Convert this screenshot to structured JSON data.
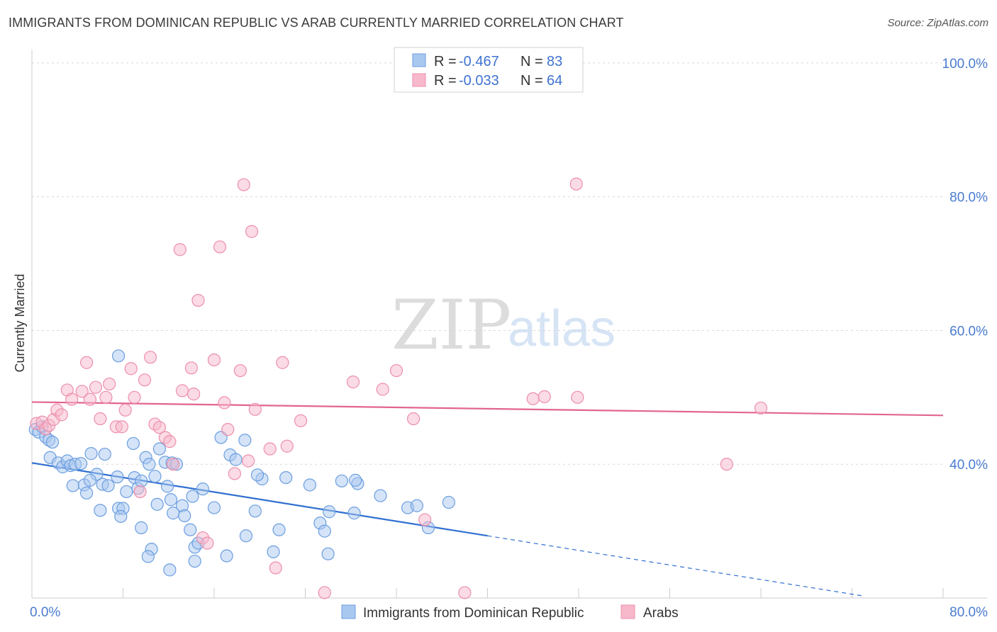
{
  "title": "IMMIGRANTS FROM DOMINICAN REPUBLIC VS ARAB CURRENTLY MARRIED CORRELATION CHART",
  "source": "Source: ZipAtlas.com",
  "watermark": {
    "zip": "ZIP",
    "atlas": "atlas"
  },
  "stats": [
    {
      "r_label": "R = ",
      "r_value": "-0.467",
      "n_label": "N = ",
      "n_value": "83",
      "color": "#a9c8f0"
    },
    {
      "r_label": "R = ",
      "r_value": "-0.033",
      "n_label": "N = ",
      "n_value": "64",
      "color": "#f7b8cb"
    }
  ],
  "chart_data": {
    "type": "scatter",
    "ylabel": "Currently Married",
    "xlim": [
      0,
      80
    ],
    "ylim": [
      20,
      102
    ],
    "x_tick_labels": [
      {
        "value": 0,
        "label": "0.0%"
      },
      {
        "value": 80,
        "label": "80.0%"
      }
    ],
    "y_tick_labels": [
      {
        "value": 100,
        "label": "100.0%"
      },
      {
        "value": 80,
        "label": "80.0%"
      },
      {
        "value": 60,
        "label": "60.0%"
      },
      {
        "value": 40,
        "label": "40.0%"
      }
    ],
    "grid": true,
    "legend_position": "bottom-center",
    "series": [
      {
        "name": "Immigrants from Dominican Republic",
        "color": "#6b9ee0",
        "fill": "#a9c8f0",
        "trend": {
          "x": [
            0,
            40
          ],
          "y": [
            40.2,
            29.3
          ],
          "dashed_to": [
            73,
            20.3
          ],
          "color": "#2f6fd1"
        },
        "points": [
          [
            0.3,
            45.2
          ],
          [
            0.6,
            44.8
          ],
          [
            0.9,
            45.6
          ],
          [
            1.2,
            44.1
          ],
          [
            1.5,
            43.6
          ],
          [
            1.8,
            43.3
          ],
          [
            1.6,
            41.0
          ],
          [
            2.3,
            40.2
          ],
          [
            2.7,
            39.6
          ],
          [
            3.1,
            40.5
          ],
          [
            3.4,
            39.8
          ],
          [
            3.8,
            40.0
          ],
          [
            4.3,
            40.1
          ],
          [
            5.2,
            41.6
          ],
          [
            5.7,
            38.5
          ],
          [
            6.4,
            41.5
          ],
          [
            3.6,
            36.8
          ],
          [
            4.6,
            36.9
          ],
          [
            4.8,
            35.7
          ],
          [
            6.2,
            37.0
          ],
          [
            6.7,
            36.8
          ],
          [
            7.5,
            38.1
          ],
          [
            7.6,
            33.4
          ],
          [
            8.0,
            33.4
          ],
          [
            7.8,
            32.2
          ],
          [
            9.0,
            38.0
          ],
          [
            9.3,
            36.4
          ],
          [
            9.6,
            37.5
          ],
          [
            8.9,
            43.1
          ],
          [
            10.0,
            41.0
          ],
          [
            10.3,
            40.0
          ],
          [
            10.8,
            38.2
          ],
          [
            11.7,
            40.3
          ],
          [
            11.2,
            42.3
          ],
          [
            12.3,
            40.2
          ],
          [
            12.7,
            40.0
          ],
          [
            11.0,
            34.0
          ],
          [
            12.2,
            34.7
          ],
          [
            12.4,
            32.7
          ],
          [
            13.2,
            33.8
          ],
          [
            13.4,
            32.3
          ],
          [
            14.1,
            35.2
          ],
          [
            15.0,
            36.3
          ],
          [
            16.0,
            33.5
          ],
          [
            16.6,
            44.0
          ],
          [
            17.4,
            41.4
          ],
          [
            17.9,
            40.7
          ],
          [
            18.7,
            43.6
          ],
          [
            19.6,
            33.0
          ],
          [
            20.2,
            37.8
          ],
          [
            21.7,
            30.2
          ],
          [
            22.3,
            38.0
          ],
          [
            24.4,
            36.9
          ],
          [
            25.3,
            31.2
          ],
          [
            25.7,
            30.0
          ],
          [
            26.1,
            32.9
          ],
          [
            27.2,
            37.5
          ],
          [
            28.3,
            32.7
          ],
          [
            28.6,
            37.1
          ],
          [
            28.4,
            37.6
          ],
          [
            30.6,
            35.3
          ],
          [
            33.0,
            33.5
          ],
          [
            33.8,
            33.8
          ],
          [
            34.8,
            30.5
          ],
          [
            36.6,
            34.3
          ],
          [
            7.6,
            56.2
          ],
          [
            9.6,
            30.5
          ],
          [
            10.5,
            27.3
          ],
          [
            10.2,
            26.2
          ],
          [
            12.1,
            24.2
          ],
          [
            14.3,
            27.6
          ],
          [
            14.6,
            28.2
          ],
          [
            14.3,
            25.5
          ],
          [
            17.1,
            26.3
          ],
          [
            18.8,
            29.3
          ],
          [
            21.2,
            26.9
          ],
          [
            26.0,
            26.6
          ],
          [
            11.9,
            36.7
          ],
          [
            8.3,
            35.9
          ],
          [
            13.9,
            30.2
          ],
          [
            19.8,
            38.4
          ],
          [
            5.1,
            37.6
          ],
          [
            6.0,
            33.1
          ]
        ]
      },
      {
        "name": "Arabs",
        "color": "#ec8fab",
        "fill": "#f7b8cb",
        "trend": {
          "x": [
            0,
            80
          ],
          "y": [
            49.3,
            47.3
          ],
          "color": "#e2658f"
        },
        "points": [
          [
            0.4,
            46.1
          ],
          [
            0.9,
            46.3
          ],
          [
            1.2,
            45.3
          ],
          [
            1.5,
            45.8
          ],
          [
            1.9,
            46.7
          ],
          [
            2.2,
            48.1
          ],
          [
            2.6,
            47.4
          ],
          [
            3.1,
            51.1
          ],
          [
            3.5,
            49.7
          ],
          [
            4.4,
            50.9
          ],
          [
            4.8,
            55.2
          ],
          [
            5.1,
            49.7
          ],
          [
            5.6,
            51.5
          ],
          [
            6.0,
            46.8
          ],
          [
            6.5,
            50.0
          ],
          [
            6.8,
            52.0
          ],
          [
            7.4,
            45.6
          ],
          [
            7.9,
            45.6
          ],
          [
            8.2,
            48.1
          ],
          [
            8.7,
            54.3
          ],
          [
            9.0,
            50.0
          ],
          [
            9.5,
            35.9
          ],
          [
            9.9,
            52.6
          ],
          [
            10.4,
            56.0
          ],
          [
            10.8,
            46.0
          ],
          [
            11.2,
            45.5
          ],
          [
            11.7,
            44.0
          ],
          [
            12.1,
            43.4
          ],
          [
            12.4,
            40.0
          ],
          [
            13.2,
            51.0
          ],
          [
            13.0,
            72.1
          ],
          [
            14.0,
            54.4
          ],
          [
            14.2,
            50.5
          ],
          [
            14.6,
            64.5
          ],
          [
            15.0,
            29.0
          ],
          [
            15.4,
            28.2
          ],
          [
            16.0,
            55.6
          ],
          [
            16.5,
            72.5
          ],
          [
            16.9,
            49.2
          ],
          [
            17.2,
            45.2
          ],
          [
            17.8,
            38.6
          ],
          [
            18.3,
            54.0
          ],
          [
            18.6,
            81.8
          ],
          [
            19.0,
            40.5
          ],
          [
            19.3,
            74.8
          ],
          [
            19.6,
            48.2
          ],
          [
            20.9,
            42.3
          ],
          [
            21.4,
            24.5
          ],
          [
            22.0,
            55.2
          ],
          [
            22.4,
            42.7
          ],
          [
            23.6,
            46.5
          ],
          [
            25.7,
            20.8
          ],
          [
            28.2,
            52.3
          ],
          [
            30.8,
            51.2
          ],
          [
            32.0,
            54.0
          ],
          [
            33.5,
            46.8
          ],
          [
            34.5,
            31.7
          ],
          [
            38.0,
            20.8
          ],
          [
            44.0,
            49.8
          ],
          [
            45.0,
            50.1
          ],
          [
            47.8,
            81.9
          ],
          [
            47.9,
            50.0
          ],
          [
            61.0,
            40.0
          ],
          [
            64.0,
            48.4
          ]
        ]
      }
    ]
  }
}
